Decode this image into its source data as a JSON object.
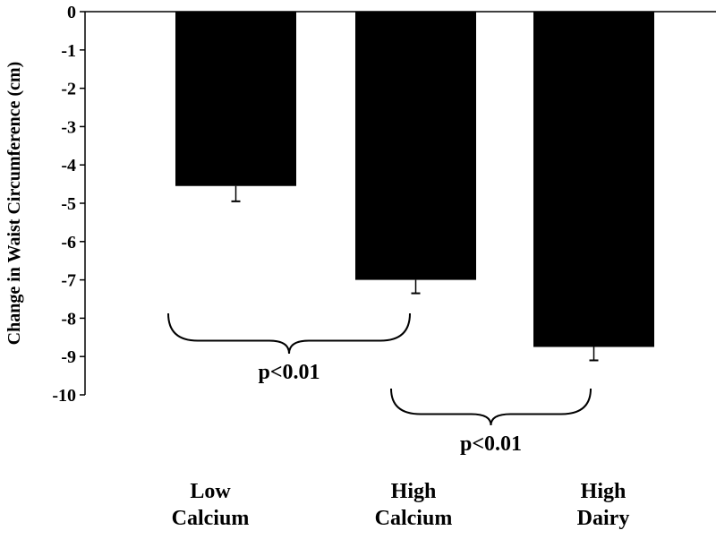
{
  "chart_data": {
    "type": "bar",
    "title": "",
    "xlabel": "",
    "ylabel": "Change in Waist Circumference (cm)",
    "categories": [
      [
        "Low",
        "Calcium"
      ],
      [
        "High",
        "Calcium"
      ],
      [
        "High",
        "Dairy"
      ]
    ],
    "values": [
      -4.55,
      -7.0,
      -8.75
    ],
    "errors": [
      0.4,
      0.35,
      0.35
    ],
    "ylim": [
      -10,
      0
    ],
    "yticks": [
      "0",
      "-1",
      "-2",
      "-3",
      "-4",
      "-5",
      "-6",
      "-7",
      "-8",
      "-9",
      "-10"
    ],
    "bar_color": "#000000",
    "annotations": [
      {
        "text": "p<0.01",
        "from": 0,
        "to": 1,
        "level": -8.1
      },
      {
        "text": "p<0.01",
        "from": 1,
        "to": 2,
        "level": -9.9
      }
    ]
  }
}
